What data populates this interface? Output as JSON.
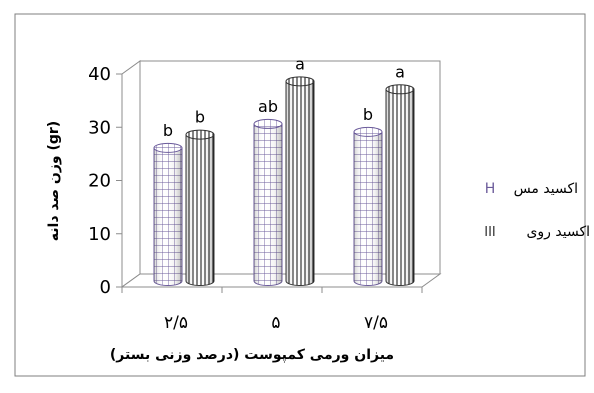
{
  "chart_data": {
    "type": "bar",
    "categories": [
      "۲/۵",
      "۵",
      "۷/۵"
    ],
    "xlabel": "میزان ورمی کمپوست (درصد وزنی بستر)",
    "ylabel": "وزن صد دانه (gr)",
    "ylim": [
      0,
      40
    ],
    "yticks": [
      0,
      10,
      20,
      30,
      40
    ],
    "series": [
      {
        "name": "اکسید مس",
        "values": [
          25,
          29.5,
          28
        ],
        "letters": [
          "b",
          "ab",
          "b"
        ],
        "pattern": "grid",
        "legend_glyph": "H",
        "color": "#6a5a9a"
      },
      {
        "name": "اکسید روی",
        "values": [
          27.5,
          37.5,
          36
        ],
        "letters": [
          "b",
          "a",
          "a"
        ],
        "pattern": "vertical-lines",
        "legend_glyph": "III",
        "color": "#333333"
      }
    ],
    "legend_position": "right",
    "grid": false,
    "style": "3d-cylinder"
  }
}
